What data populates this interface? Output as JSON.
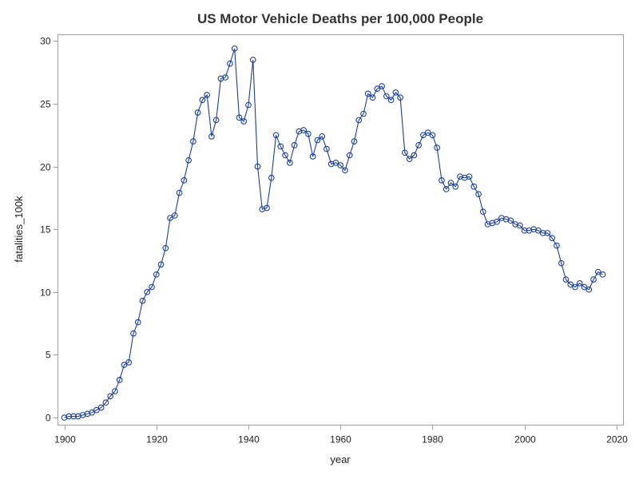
{
  "chart_data": {
    "type": "line",
    "title": "US Motor Vehicle Deaths per 100,000 People",
    "xlabel": "year",
    "ylabel": "fatalities_100k",
    "xlim": [
      1898.6,
      2021.5
    ],
    "ylim": [
      -0.6,
      30.5
    ],
    "x_ticks": [
      1900,
      1920,
      1940,
      1960,
      1980,
      2000,
      2020
    ],
    "y_ticks": [
      0,
      5,
      10,
      15,
      20,
      25,
      30
    ],
    "grid": false,
    "legend": "none",
    "marker": "circle",
    "line_color": "#1a3f9c",
    "marker_color": "#1a3f9c",
    "series": [
      {
        "name": "fatalities_100k",
        "x": [
          1900,
          1901,
          1902,
          1903,
          1904,
          1905,
          1906,
          1907,
          1908,
          1909,
          1910,
          1911,
          1912,
          1913,
          1914,
          1915,
          1916,
          1917,
          1918,
          1919,
          1920,
          1921,
          1922,
          1923,
          1924,
          1925,
          1926,
          1927,
          1928,
          1929,
          1930,
          1931,
          1932,
          1933,
          1934,
          1935,
          1936,
          1937,
          1938,
          1939,
          1940,
          1941,
          1942,
          1943,
          1944,
          1945,
          1946,
          1947,
          1948,
          1949,
          1950,
          1951,
          1952,
          1953,
          1954,
          1955,
          1956,
          1957,
          1958,
          1959,
          1960,
          1961,
          1962,
          1963,
          1964,
          1965,
          1966,
          1967,
          1968,
          1969,
          1970,
          1971,
          1972,
          1973,
          1974,
          1975,
          1976,
          1977,
          1978,
          1979,
          1980,
          1981,
          1982,
          1983,
          1984,
          1985,
          1986,
          1987,
          1988,
          1989,
          1990,
          1991,
          1992,
          1993,
          1994,
          1995,
          1996,
          1997,
          1998,
          1999,
          2000,
          2001,
          2002,
          2003,
          2004,
          2005,
          2006,
          2007,
          2008,
          2009,
          2010,
          2011,
          2012,
          2013,
          2014,
          2015,
          2016,
          2017
        ],
        "y": [
          0.0,
          0.1,
          0.1,
          0.1,
          0.2,
          0.3,
          0.4,
          0.6,
          0.8,
          1.2,
          1.7,
          2.1,
          3.0,
          4.2,
          4.4,
          6.7,
          7.6,
          9.3,
          10.0,
          10.4,
          11.4,
          12.2,
          13.5,
          15.9,
          16.1,
          17.9,
          18.9,
          20.5,
          22.0,
          24.3,
          25.3,
          25.7,
          22.4,
          23.7,
          27.0,
          27.1,
          28.2,
          29.4,
          23.9,
          23.6,
          24.9,
          28.5,
          20.0,
          16.6,
          16.7,
          19.1,
          22.5,
          21.6,
          20.9,
          20.3,
          21.7,
          22.8,
          22.9,
          22.6,
          20.8,
          22.1,
          22.4,
          21.4,
          20.2,
          20.3,
          20.1,
          19.7,
          20.9,
          22.0,
          23.7,
          24.2,
          25.8,
          25.5,
          26.2,
          26.4,
          25.6,
          25.3,
          25.9,
          25.5,
          21.1,
          20.6,
          20.9,
          21.7,
          22.5,
          22.7,
          22.5,
          21.5,
          18.9,
          18.2,
          18.7,
          18.4,
          19.2,
          19.1,
          19.2,
          18.4,
          17.8,
          16.4,
          15.4,
          15.5,
          15.6,
          15.9,
          15.8,
          15.7,
          15.4,
          15.3,
          14.9,
          14.9,
          15.0,
          14.9,
          14.7,
          14.7,
          14.3,
          13.7,
          12.3,
          11.0,
          10.6,
          10.4,
          10.7,
          10.4,
          10.2,
          11.0,
          11.6,
          11.4
        ]
      }
    ]
  }
}
